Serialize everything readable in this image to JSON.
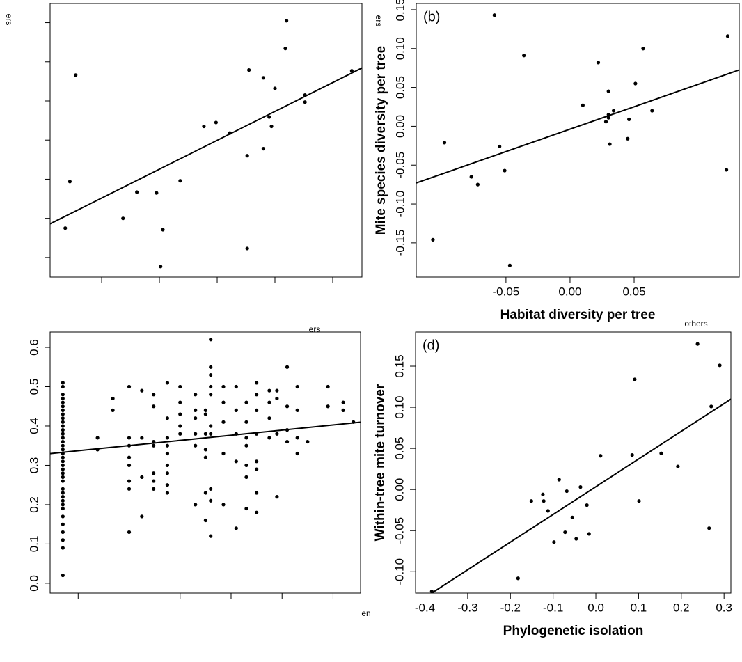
{
  "chart_data": [
    {
      "type": "scatter",
      "color": "#000000",
      "x": [
        0.37,
        0.45,
        0.55,
        1.37,
        1.61,
        1.95,
        2.02,
        2.06,
        2.36,
        2.77,
        2.98,
        3.22,
        3.52,
        3.52,
        3.55,
        3.8,
        3.8,
        3.9,
        3.94,
        4.0,
        4.18,
        4.2,
        4.52,
        4.52,
        5.33
      ],
      "values": [
        1.75,
        2.94,
        5.66,
        2.0,
        2.67,
        2.65,
        0.77,
        1.71,
        2.96,
        4.35,
        4.45,
        4.18,
        1.23,
        3.6,
        5.79,
        5.59,
        3.78,
        4.59,
        4.35,
        5.32,
        6.34,
        7.05,
        5.15,
        4.97,
        5.77
      ],
      "fit": {
        "intercept": 1.78,
        "slope": 0.738
      },
      "xlim": [
        0.108,
        5.506
      ],
      "ylim": [
        0.5,
        7.49
      ],
      "xticks": [
        1,
        2,
        3,
        4,
        5
      ],
      "yticks": [
        1,
        2,
        3,
        4,
        5,
        6,
        7
      ],
      "tick_labels": false
    },
    {
      "type": "scatter",
      "color": "#000000",
      "panel_label": "(b)",
      "xlabel": "Habitat diversity per tree",
      "ylabel": "Mite species diversity per tree",
      "x": [
        -0.107,
        -0.098,
        -0.077,
        -0.072,
        -0.059,
        -0.055,
        -0.051,
        -0.047,
        -0.036,
        0.01,
        0.022,
        0.03,
        0.028,
        0.03,
        0.03,
        0.031,
        0.034,
        0.046,
        0.045,
        0.051,
        0.057,
        0.064,
        0.122,
        0.123
      ],
      "values": [
        -0.146,
        -0.021,
        -0.065,
        -0.075,
        0.143,
        -0.026,
        -0.057,
        -0.179,
        0.091,
        0.027,
        0.082,
        0.045,
        0.006,
        0.015,
        0.011,
        -0.023,
        0.02,
        0.009,
        -0.016,
        0.055,
        0.1,
        0.02,
        -0.056,
        0.116
      ],
      "fit": {
        "intercept": -0.0037,
        "slope": 0.577
      },
      "xlim": [
        -0.12,
        0.132
      ],
      "ylim": [
        -0.194,
        0.158
      ],
      "xticks": [
        -0.05,
        {
          "value": 0,
          "label": "0.00"
        },
        0.05
      ],
      "yticks": [
        -0.15,
        {
          "value": -0.1,
          "label": "-0.10"
        },
        -0.05,
        {
          "value": 0,
          "label": "0.00"
        },
        0.05,
        {
          "value": 0.1,
          "label": "0.10"
        },
        0.15
      ],
      "tick_labels": true
    },
    {
      "type": "scatter",
      "color": "#000000",
      "x": [
        0.7,
        0.7,
        0.7,
        0.7,
        0.7,
        0.7,
        0.7,
        0.7,
        0.7,
        0.7,
        0.7,
        0.7,
        0.7,
        0.7,
        0.7,
        0.7,
        0.7,
        0.7,
        0.7,
        0.7,
        0.7,
        0.7,
        0.7,
        0.7,
        0.7,
        0.7,
        0.7,
        0.7,
        0.7,
        0.7,
        0.7,
        0.7,
        0.7,
        0.7,
        0.7,
        0.7,
        0.7,
        1.38,
        1.38,
        1.68,
        1.68,
        2.0,
        2.0,
        2.0,
        2.0,
        2.0,
        2.0,
        2.0,
        2.0,
        2.25,
        2.25,
        2.25,
        2.25,
        2.48,
        2.48,
        2.48,
        2.48,
        2.48,
        2.48,
        2.48,
        2.75,
        2.75,
        2.75,
        2.75,
        2.75,
        2.75,
        2.75,
        2.75,
        2.75,
        3.0,
        3.0,
        3.0,
        3.0,
        3.0,
        3.3,
        3.3,
        3.3,
        3.3,
        3.3,
        3.3,
        3.5,
        3.5,
        3.5,
        3.5,
        3.5,
        3.5,
        3.5,
        3.6,
        3.6,
        3.6,
        3.6,
        3.6,
        3.6,
        3.6,
        3.6,
        3.6,
        3.6,
        3.85,
        3.85,
        3.85,
        3.85,
        3.85,
        4.1,
        4.1,
        4.1,
        4.1,
        4.1,
        4.3,
        4.3,
        4.3,
        4.3,
        4.3,
        4.3,
        4.3,
        4.5,
        4.5,
        4.5,
        4.5,
        4.5,
        4.5,
        4.5,
        4.5,
        4.75,
        4.75,
        4.75,
        4.75,
        4.9,
        4.9,
        4.9,
        4.9,
        5.1,
        5.1,
        5.1,
        5.1,
        5.3,
        5.3,
        5.3,
        5.3,
        5.5,
        5.9,
        5.9,
        6.2,
        6.2,
        6.4
      ],
      "values": [
        0.02,
        0.09,
        0.11,
        0.13,
        0.15,
        0.17,
        0.19,
        0.2,
        0.21,
        0.22,
        0.23,
        0.24,
        0.26,
        0.27,
        0.28,
        0.29,
        0.3,
        0.31,
        0.32,
        0.33,
        0.34,
        0.35,
        0.36,
        0.37,
        0.38,
        0.39,
        0.4,
        0.41,
        0.42,
        0.43,
        0.44,
        0.45,
        0.46,
        0.47,
        0.48,
        0.5,
        0.51,
        0.34,
        0.37,
        0.44,
        0.47,
        0.13,
        0.24,
        0.26,
        0.3,
        0.32,
        0.35,
        0.37,
        0.5,
        0.17,
        0.27,
        0.37,
        0.49,
        0.24,
        0.26,
        0.28,
        0.35,
        0.36,
        0.45,
        0.48,
        0.23,
        0.25,
        0.28,
        0.3,
        0.33,
        0.35,
        0.37,
        0.42,
        0.51,
        0.38,
        0.4,
        0.43,
        0.46,
        0.5,
        0.2,
        0.35,
        0.38,
        0.42,
        0.44,
        0.48,
        0.16,
        0.23,
        0.32,
        0.34,
        0.38,
        0.44,
        0.43,
        0.12,
        0.21,
        0.24,
        0.38,
        0.4,
        0.48,
        0.5,
        0.53,
        0.55,
        0.62,
        0.2,
        0.33,
        0.41,
        0.46,
        0.5,
        0.14,
        0.31,
        0.38,
        0.44,
        0.5,
        0.19,
        0.27,
        0.3,
        0.35,
        0.37,
        0.41,
        0.46,
        0.18,
        0.23,
        0.29,
        0.31,
        0.38,
        0.44,
        0.48,
        0.51,
        0.37,
        0.42,
        0.46,
        0.49,
        0.22,
        0.38,
        0.47,
        0.49,
        0.36,
        0.39,
        0.45,
        0.55,
        0.33,
        0.37,
        0.44,
        0.5,
        0.36,
        0.45,
        0.5,
        0.44,
        0.46,
        0.41
      ],
      "fit": {
        "intercept": 0.324,
        "slope": 0.0131
      },
      "xlim": [
        0.45,
        6.54
      ],
      "ylim": [
        -0.025,
        0.639
      ],
      "xticks": [
        1,
        2,
        3,
        4,
        5,
        6
      ],
      "yticks": [
        {
          "value": 0,
          "label": "0.0"
        },
        0.1,
        0.2,
        0.3,
        0.4,
        0.5,
        0.6
      ],
      "tick_labels": true,
      "x_tick_labels": false
    },
    {
      "type": "scatter",
      "color": "#000000",
      "panel_label": "(d)",
      "xlabel": "Phylogenetic isolation",
      "ylabel": "Within-tree mite turnover",
      "x": [
        -0.384,
        -0.182,
        -0.151,
        -0.124,
        -0.122,
        -0.112,
        -0.098,
        -0.086,
        -0.072,
        -0.068,
        -0.055,
        -0.046,
        -0.036,
        -0.021,
        -0.016,
        0.011,
        0.085,
        0.091,
        0.101,
        0.153,
        0.192,
        0.238,
        0.265,
        0.27,
        0.29
      ],
      "values": [
        -0.124,
        -0.108,
        -0.014,
        -0.006,
        -0.014,
        -0.026,
        -0.064,
        0.012,
        -0.052,
        -0.002,
        -0.034,
        -0.06,
        0.003,
        -0.019,
        -0.054,
        0.041,
        0.042,
        0.134,
        -0.014,
        0.044,
        0.028,
        0.177,
        -0.047,
        0.101,
        0.151
      ],
      "fit": {
        "intercept": 0.0034,
        "slope": 0.337
      },
      "xlim": [
        -0.422,
        0.316
      ],
      "ylim": [
        -0.126,
        0.1915
      ],
      "xticks": [
        -0.4,
        -0.3,
        -0.2,
        -0.1,
        {
          "value": 0,
          "label": "0.0"
        },
        0.1,
        0.2,
        0.3
      ],
      "yticks": [
        {
          "value": -0.1,
          "label": "-0.10"
        },
        -0.05,
        {
          "value": 0,
          "label": "0.00"
        },
        0.05,
        {
          "value": 0.1,
          "label": "0.10"
        },
        0.15
      ],
      "tick_labels": true
    }
  ],
  "fragments": [
    "ers",
    "ers",
    "ers",
    "others",
    "en"
  ]
}
